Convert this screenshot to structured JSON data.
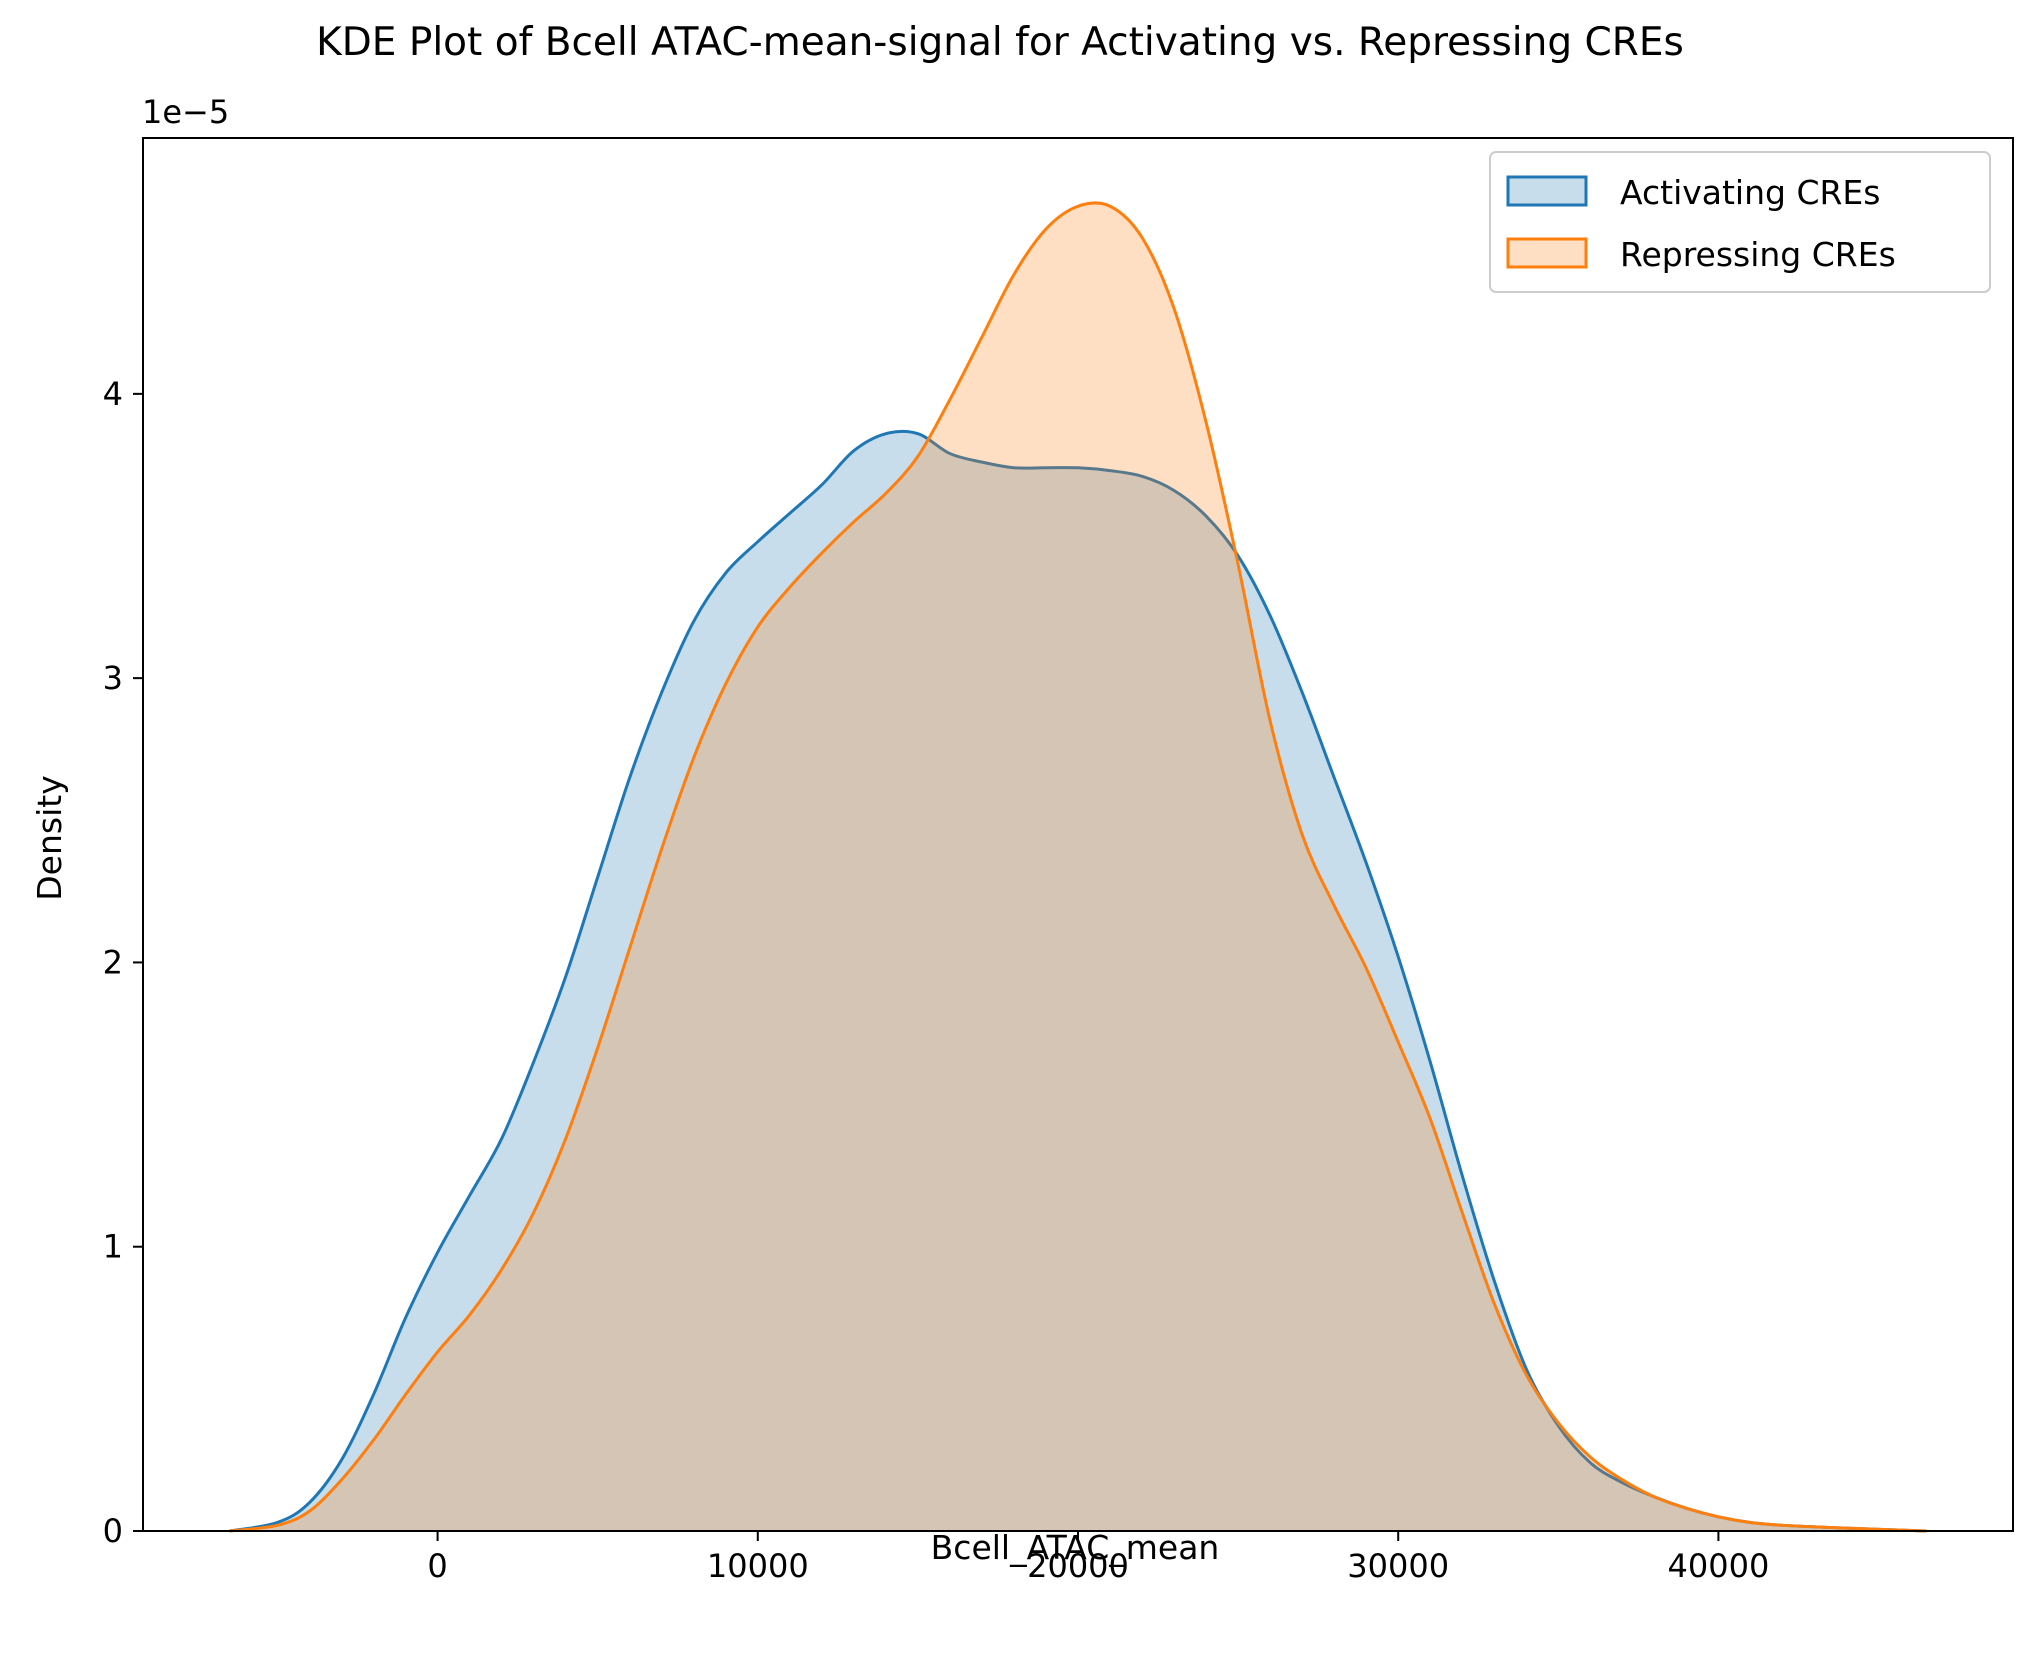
{
  "chart_data": {
    "type": "area",
    "title": "KDE Plot of Bcell ATAC-mean-signal for Activating vs. Repressing CREs",
    "xlabel": "Bcell_ATAC_mean",
    "ylabel": "Density",
    "y_offset_label": "1e−5",
    "y_scale_factor": 1e-05,
    "xlim": [
      -9200,
      49200
    ],
    "ylim": [
      0,
      4.9
    ],
    "x_ticks": [
      {
        "value": 0,
        "label": "0"
      },
      {
        "value": 10000,
        "label": "10000"
      },
      {
        "value": 20000,
        "label": "20000"
      },
      {
        "value": 30000,
        "label": "30000"
      },
      {
        "value": 40000,
        "label": "40000"
      }
    ],
    "y_ticks": [
      {
        "value": 0,
        "label": "0"
      },
      {
        "value": 1,
        "label": "1"
      },
      {
        "value": 2,
        "label": "2"
      },
      {
        "value": 3,
        "label": "3"
      },
      {
        "value": 4,
        "label": "4"
      }
    ],
    "grid": false,
    "legend_position": "top-right",
    "series": [
      {
        "name": "Activating CREs",
        "color": "#1f77b4",
        "fill_opacity": 0.25,
        "x": [
          -6500,
          -5000,
          -4000,
          -3000,
          -2000,
          -1000,
          0,
          1000,
          2000,
          3000,
          4000,
          5000,
          6000,
          7000,
          8000,
          9000,
          10000,
          11000,
          12000,
          13000,
          14000,
          15000,
          16000,
          17000,
          18000,
          19000,
          20000,
          21000,
          22000,
          23000,
          24000,
          25000,
          26000,
          27000,
          28000,
          29000,
          30000,
          31000,
          32000,
          33000,
          34000,
          35000,
          36000,
          37000,
          38000,
          39000,
          40000,
          41000,
          42000,
          44000,
          46500
        ],
        "y": [
          0.0,
          0.03,
          0.1,
          0.25,
          0.48,
          0.75,
          0.98,
          1.18,
          1.38,
          1.65,
          1.95,
          2.3,
          2.65,
          2.95,
          3.2,
          3.37,
          3.48,
          3.58,
          3.68,
          3.8,
          3.86,
          3.86,
          3.79,
          3.76,
          3.74,
          3.74,
          3.74,
          3.73,
          3.71,
          3.66,
          3.57,
          3.43,
          3.22,
          2.95,
          2.65,
          2.35,
          2.02,
          1.65,
          1.25,
          0.88,
          0.57,
          0.37,
          0.24,
          0.17,
          0.12,
          0.08,
          0.05,
          0.03,
          0.02,
          0.01,
          0.0
        ]
      },
      {
        "name": "Repressing CREs",
        "color": "#ff7f0e",
        "fill_opacity": 0.25,
        "x": [
          -6500,
          -5000,
          -4000,
          -3000,
          -2000,
          -1000,
          0,
          1000,
          2000,
          3000,
          4000,
          5000,
          6000,
          7000,
          8000,
          9000,
          10000,
          11000,
          12000,
          13000,
          14000,
          15000,
          16000,
          17000,
          18000,
          19000,
          20000,
          21000,
          22000,
          23000,
          24000,
          25000,
          26000,
          27000,
          28000,
          29000,
          30000,
          31000,
          32000,
          33000,
          34000,
          35000,
          36000,
          37000,
          38000,
          39000,
          40000,
          41000,
          42000,
          44000,
          46500
        ],
        "y": [
          0.0,
          0.02,
          0.07,
          0.18,
          0.32,
          0.48,
          0.63,
          0.76,
          0.92,
          1.12,
          1.38,
          1.7,
          2.05,
          2.4,
          2.72,
          2.98,
          3.18,
          3.32,
          3.44,
          3.55,
          3.65,
          3.78,
          3.98,
          4.2,
          4.42,
          4.58,
          4.66,
          4.66,
          4.55,
          4.3,
          3.9,
          3.4,
          2.85,
          2.45,
          2.2,
          1.98,
          1.72,
          1.45,
          1.12,
          0.8,
          0.55,
          0.38,
          0.26,
          0.18,
          0.12,
          0.08,
          0.05,
          0.03,
          0.02,
          0.01,
          0.0
        ]
      }
    ]
  }
}
